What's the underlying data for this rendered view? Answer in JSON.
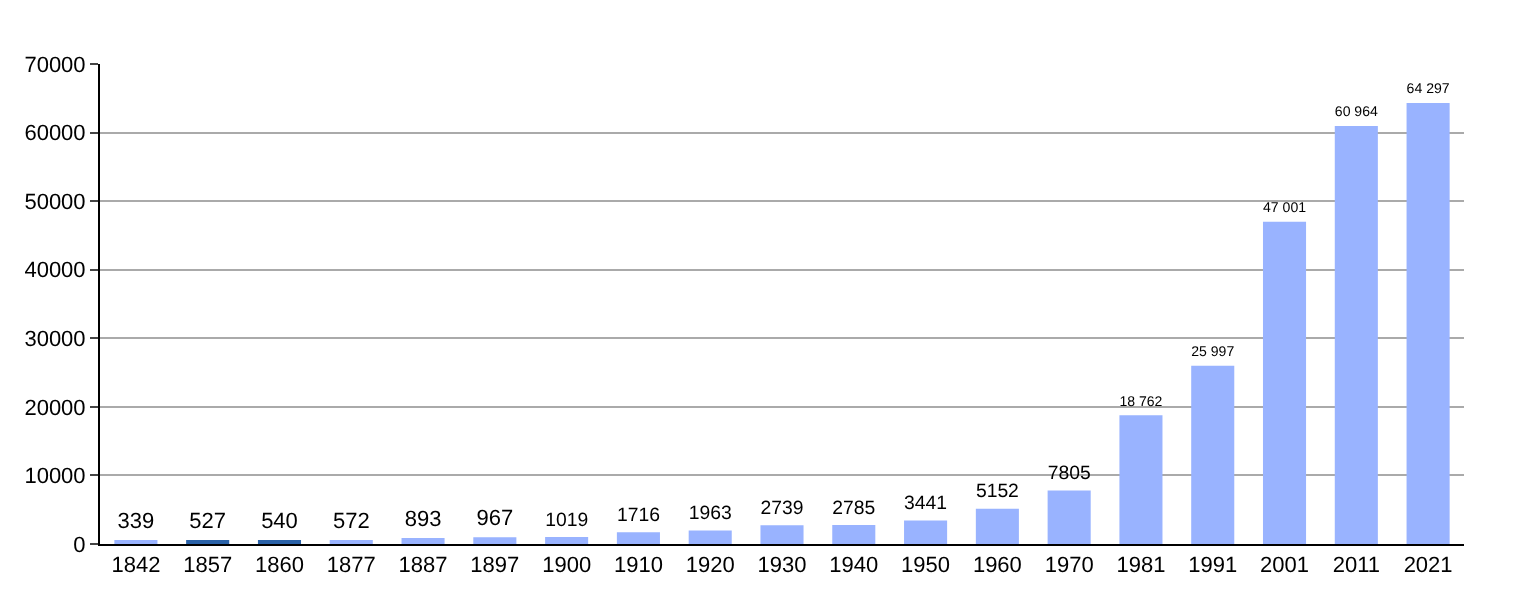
{
  "chart_data": {
    "type": "bar",
    "categories": [
      "1842",
      "1857",
      "1860",
      "1877",
      "1887",
      "1897",
      "1900",
      "1910",
      "1920",
      "1930",
      "1940",
      "1950",
      "1960",
      "1970",
      "1981",
      "1991",
      "2001",
      "2011",
      "2021"
    ],
    "values": [
      339,
      527,
      540,
      572,
      893,
      967,
      1019,
      1716,
      1963,
      2739,
      2785,
      3441,
      5152,
      7805,
      18762,
      25997,
      47001,
      60964,
      64297
    ],
    "value_labels": [
      "339",
      "527",
      "540",
      "572",
      "893",
      "967",
      "1019",
      "1716",
      "1963",
      "2739",
      "2785",
      "3441",
      "5152",
      "7805",
      "18 762",
      "25 997",
      "47 001",
      "60 964",
      "64 297"
    ],
    "colors": [
      "#99b3ff",
      "#2a62a8",
      "#2a62a8",
      "#99b3ff",
      "#99b3ff",
      "#99b3ff",
      "#99b3ff",
      "#99b3ff",
      "#99b3ff",
      "#99b3ff",
      "#99b3ff",
      "#99b3ff",
      "#99b3ff",
      "#99b3ff",
      "#99b3ff",
      "#99b3ff",
      "#99b3ff",
      "#99b3ff",
      "#99b3ff"
    ],
    "ylim": [
      0,
      70000
    ],
    "yticks": [
      0,
      10000,
      20000,
      30000,
      40000,
      50000,
      60000,
      70000
    ],
    "grid": "y",
    "legend": false
  }
}
